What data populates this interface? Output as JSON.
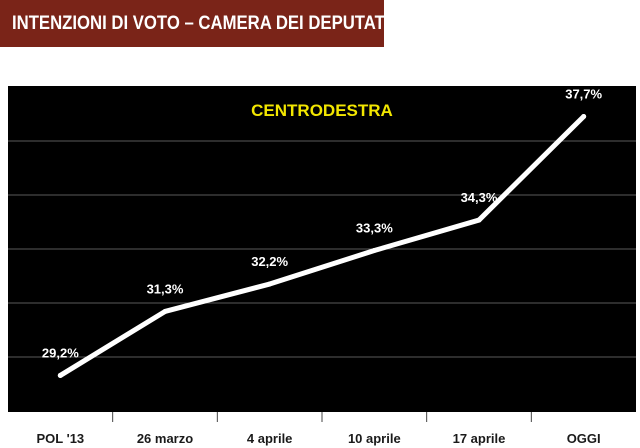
{
  "header": {
    "title": "INTENZIONI DI VOTO – CAMERA DEI DEPUTATI"
  },
  "colors": {
    "header_bg": "#7a2418",
    "plot_bg": "#000000",
    "line": "#ffffff",
    "series_title": "#f2e600",
    "gridline": "#5a5a5a"
  },
  "chart_data": {
    "type": "line",
    "title": "",
    "xlabel": "",
    "ylabel": "",
    "categories": [
      "POL '13",
      "26 marzo",
      "4 aprile",
      "10 aprile",
      "17 aprile",
      "OGGI"
    ],
    "series": [
      {
        "name": "CENTRODESTRA",
        "values": [
          29.2,
          31.3,
          32.2,
          33.3,
          34.3,
          37.7
        ],
        "labels": [
          "29,2%",
          "31,3%",
          "32,2%",
          "33,3%",
          "34,3%",
          "37,7%"
        ]
      }
    ],
    "ylim": [
      28.0,
      38.7
    ],
    "grid": true,
    "legend": "top-center"
  }
}
